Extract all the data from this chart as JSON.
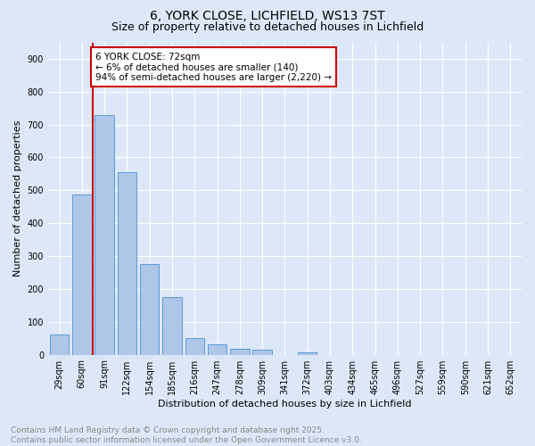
{
  "title_line1": "6, YORK CLOSE, LICHFIELD, WS13 7ST",
  "title_line2": "Size of property relative to detached houses in Lichfield",
  "xlabel": "Distribution of detached houses by size in Lichfield",
  "ylabel": "Number of detached properties",
  "bar_labels": [
    "29sqm",
    "60sqm",
    "91sqm",
    "122sqm",
    "154sqm",
    "185sqm",
    "216sqm",
    "247sqm",
    "278sqm",
    "309sqm",
    "341sqm",
    "372sqm",
    "403sqm",
    "434sqm",
    "465sqm",
    "496sqm",
    "527sqm",
    "559sqm",
    "590sqm",
    "621sqm",
    "652sqm"
  ],
  "bar_values": [
    60,
    487,
    730,
    554,
    275,
    175,
    50,
    32,
    18,
    15,
    0,
    7,
    0,
    0,
    0,
    0,
    0,
    0,
    0,
    0,
    0
  ],
  "bar_color": "#aec6e8",
  "bar_edgecolor": "#5b9bd5",
  "vline_x": 1.5,
  "vline_color": "#cc0000",
  "annotation_text": "6 YORK CLOSE: 72sqm\n← 6% of detached houses are smaller (140)\n94% of semi-detached houses are larger (2,220) →",
  "annotation_box_edgecolor": "#cc0000",
  "annotation_box_facecolor": "#ffffff",
  "ylim": [
    0,
    950
  ],
  "yticks": [
    0,
    100,
    200,
    300,
    400,
    500,
    600,
    700,
    800,
    900
  ],
  "bg_color": "#dce8f8",
  "grid_color": "#ffffff",
  "footer_text": "Contains HM Land Registry data © Crown copyright and database right 2025.\nContains public sector information licensed under the Open Government Licence v3.0.",
  "footer_color": "#888888",
  "title_fontsize": 10,
  "subtitle_fontsize": 9,
  "axis_label_fontsize": 8,
  "tick_fontsize": 7,
  "annotation_fontsize": 7.5,
  "footer_fontsize": 6.5
}
